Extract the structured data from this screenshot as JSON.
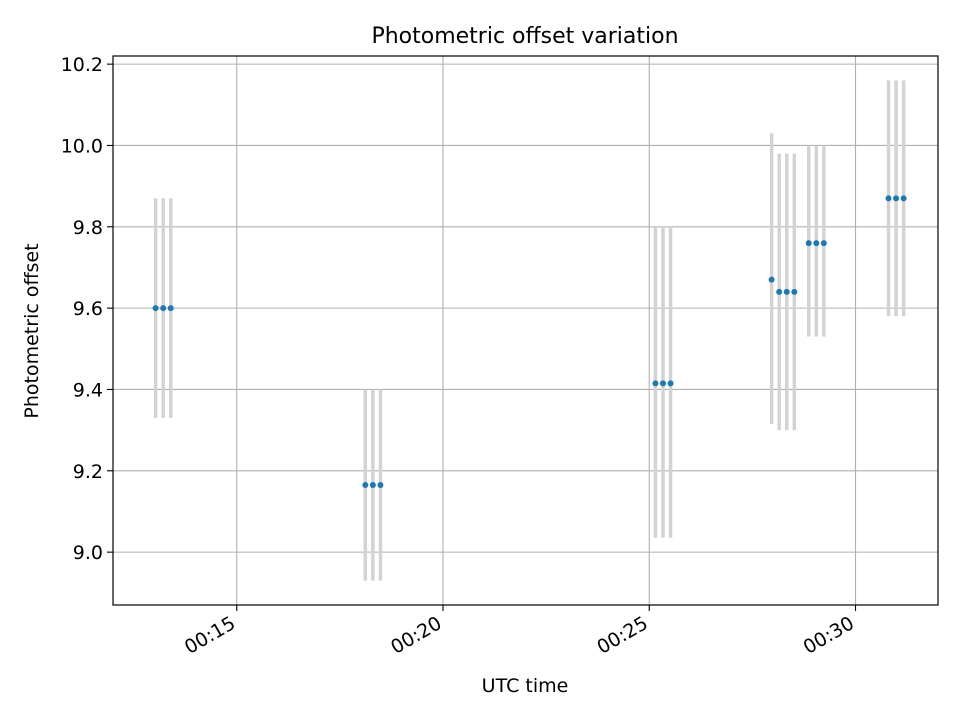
{
  "chart_data": {
    "type": "scatter",
    "title": "Photometric offset variation",
    "xlabel": "UTC time",
    "ylabel": "Photometric offset",
    "x_tick_labels": [
      "00:15",
      "00:20",
      "00:25",
      "00:30"
    ],
    "x_ticks": [
      "00:15",
      "00:20",
      "00:25",
      "00:30"
    ],
    "xlim": [
      "00:12:00",
      "00:32:00"
    ],
    "y_ticks": [
      9.0,
      9.2,
      9.4,
      9.6,
      9.8,
      10.0,
      10.2
    ],
    "y_tick_labels": [
      "9.0",
      "9.2",
      "9.4",
      "9.6",
      "9.8",
      "10.0",
      "10.2"
    ],
    "ylim": [
      8.87,
      10.22
    ],
    "grid": true,
    "colors": {
      "points": "#1f77b4",
      "errorbars": "#d3d3d3",
      "grid": "#b0b0b0"
    },
    "points": [
      {
        "t": "00:13:02",
        "y": 9.6,
        "ylow": 9.33,
        "yhigh": 9.87
      },
      {
        "t": "00:13:13",
        "y": 9.6,
        "ylow": 9.33,
        "yhigh": 9.87
      },
      {
        "t": "00:13:24",
        "y": 9.6,
        "ylow": 9.33,
        "yhigh": 9.87
      },
      {
        "t": "00:18:07",
        "y": 9.165,
        "ylow": 8.93,
        "yhigh": 9.4
      },
      {
        "t": "00:18:18",
        "y": 9.165,
        "ylow": 8.93,
        "yhigh": 9.4
      },
      {
        "t": "00:18:29",
        "y": 9.165,
        "ylow": 8.93,
        "yhigh": 9.4
      },
      {
        "t": "00:25:09",
        "y": 9.415,
        "ylow": 9.035,
        "yhigh": 9.8
      },
      {
        "t": "00:25:20",
        "y": 9.415,
        "ylow": 9.035,
        "yhigh": 9.8
      },
      {
        "t": "00:25:31",
        "y": 9.415,
        "ylow": 9.035,
        "yhigh": 9.8
      },
      {
        "t": "00:27:58",
        "y": 9.67,
        "ylow": 9.315,
        "yhigh": 10.03
      },
      {
        "t": "00:28:09",
        "y": 9.64,
        "ylow": 9.3,
        "yhigh": 9.98
      },
      {
        "t": "00:28:20",
        "y": 9.64,
        "ylow": 9.3,
        "yhigh": 9.98
      },
      {
        "t": "00:28:31",
        "y": 9.64,
        "ylow": 9.3,
        "yhigh": 9.98
      },
      {
        "t": "00:28:52",
        "y": 9.76,
        "ylow": 9.53,
        "yhigh": 10.0
      },
      {
        "t": "00:29:03",
        "y": 9.76,
        "ylow": 9.53,
        "yhigh": 10.0
      },
      {
        "t": "00:29:14",
        "y": 9.76,
        "ylow": 9.53,
        "yhigh": 10.0
      },
      {
        "t": "00:30:48",
        "y": 9.87,
        "ylow": 9.58,
        "yhigh": 10.16
      },
      {
        "t": "00:30:59",
        "y": 9.87,
        "ylow": 9.58,
        "yhigh": 10.16
      },
      {
        "t": "00:31:10",
        "y": 9.87,
        "ylow": 9.58,
        "yhigh": 10.16
      }
    ]
  }
}
